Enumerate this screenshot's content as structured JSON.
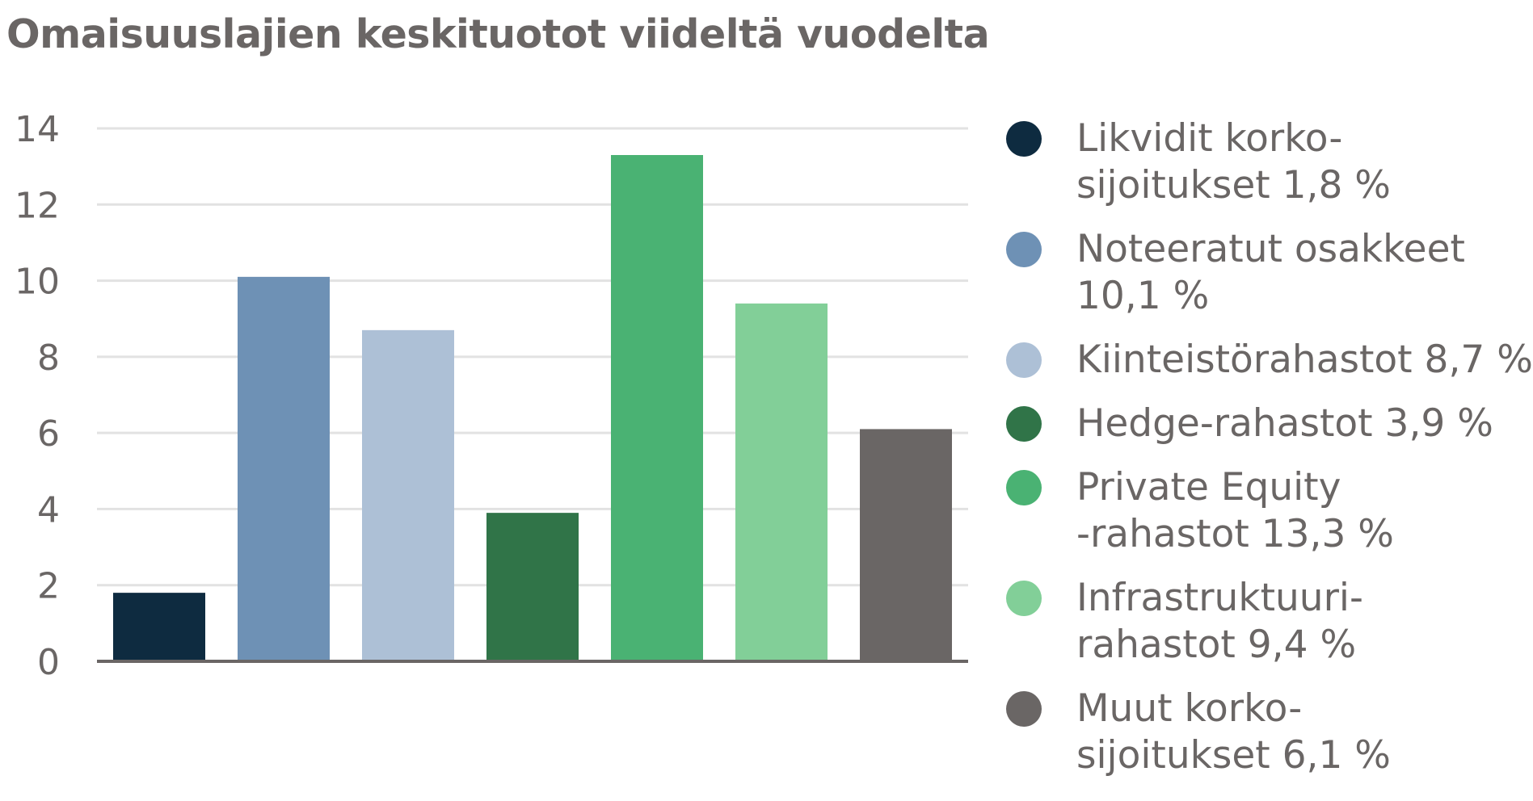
{
  "chart_data": {
    "type": "bar",
    "title": "Omaisuuslajien keskituotot viideltä vuodelta",
    "xlabel": "",
    "ylabel": "",
    "ylim": [
      0,
      14
    ],
    "yticks": [
      0,
      2,
      4,
      6,
      8,
      10,
      12,
      14
    ],
    "grid": true,
    "legend_position": "right",
    "categories": [
      "Likvidit korko-sijoitukset",
      "Noteeratut osakkeet",
      "Kiinteistörahastot",
      "Hedge-rahastot",
      "Private Equity -rahastot",
      "Infrastruktuuri-rahastot",
      "Muut korko-sijoitukset"
    ],
    "values": [
      1.8,
      10.1,
      8.7,
      3.9,
      13.3,
      9.4,
      6.1
    ],
    "colors": [
      "#0e2b40",
      "#6e91b5",
      "#adc0d6",
      "#307448",
      "#4ab273",
      "#82cf98",
      "#6a6665"
    ],
    "legend": [
      {
        "line1": "Likvidit korko-",
        "line2": "sijoitukset 1,8 %",
        "color": "#0e2b40"
      },
      {
        "line1": "Noteeratut osakkeet",
        "line2": "10,1 %",
        "color": "#6e91b5"
      },
      {
        "line1": "Kiinteistörahastot 8,7 %",
        "line2": "",
        "color": "#adc0d6"
      },
      {
        "line1": "Hedge-rahastot 3,9 %",
        "line2": "",
        "color": "#307448"
      },
      {
        "line1": "Private Equity",
        "line2": "-rahastot 13,3 %",
        "color": "#4ab273"
      },
      {
        "line1": "Infrastruktuuri-",
        "line2": "rahastot 9,4 %",
        "color": "#82cf98"
      },
      {
        "line1": "Muut korko-",
        "line2": "sijoitukset 6,1 %",
        "color": "#6a6665"
      }
    ]
  }
}
